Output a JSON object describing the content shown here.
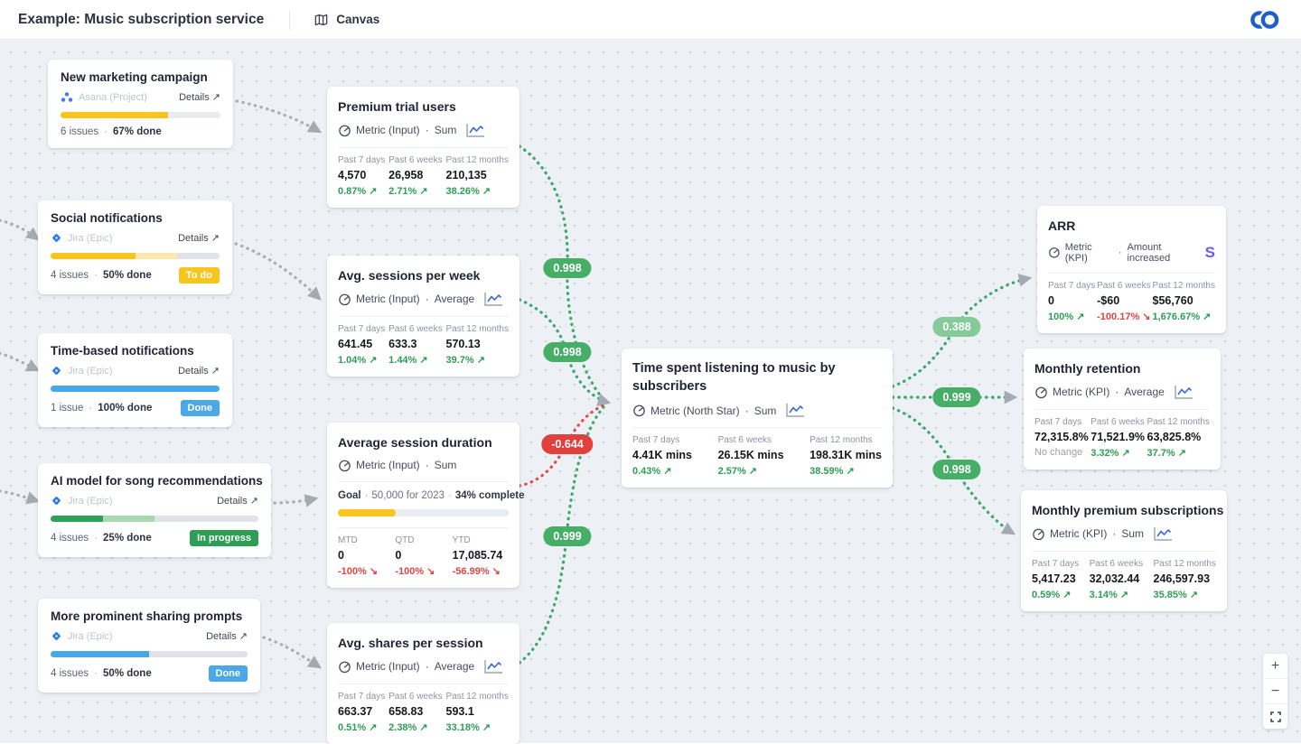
{
  "header": {
    "title": "Example: Music subscription service",
    "view": {
      "icon": "map-icon",
      "label": "Canvas"
    },
    "logo_icon": "doubleloop-logo"
  },
  "ui": {
    "dot": "·",
    "details_arrow": "↗"
  },
  "palette": {
    "edge_positive": "#3aa968",
    "edge_negative": "#e24c4c",
    "edge_work": "#a9aeb6",
    "badge_strong": "#47ae68",
    "badge_weak": "#85cb99",
    "badge_negative": "#e2403c",
    "delta_up": "#2f9e55",
    "delta_down": "#e04444",
    "stripe_blue": "#635bff",
    "jira_blue": "#2b7de9",
    "asana_blue": "#4a7ce0"
  },
  "work_cards": [
    {
      "title": "New marketing campaign",
      "source": "Asana (Project)",
      "source_icon": "asana-icon",
      "details": "Details ↗",
      "issues": "6 issues",
      "done": "67% done",
      "progress": [
        {
          "pct": 67,
          "color": "#f7c51e"
        },
        {
          "pct": 33,
          "color": "#e8ebef"
        }
      ]
    },
    {
      "title": "Social notifications",
      "source": "Jira (Epic)",
      "source_icon": "jira-icon",
      "details": "Details ↗",
      "issues": "4 issues",
      "done": "50% done",
      "status": {
        "label": "To do",
        "bg": "#f6c51f"
      },
      "progress": [
        {
          "pct": 50,
          "color": "#f7c51e"
        },
        {
          "pct": 25,
          "color": "#fbe8ae"
        },
        {
          "pct": 25,
          "color": "#dfe3e8"
        }
      ]
    },
    {
      "title": "Time-based notifications",
      "source": "Jira (Epic)",
      "source_icon": "jira-icon",
      "details": "Details ↗",
      "issues": "1 issue",
      "done": "100% done",
      "status": {
        "label": "Done",
        "bg": "#4aa8e8"
      },
      "progress": [
        {
          "pct": 100,
          "color": "#45a9e9"
        }
      ]
    },
    {
      "title": "AI model for song recommendations",
      "source": "Jira (Epic)",
      "source_icon": "jira-icon",
      "details": "Details ↗",
      "issues": "4 issues",
      "done": "25% done",
      "status": {
        "label": "In progress",
        "bg": "#2f9e55"
      },
      "progress": [
        {
          "pct": 25,
          "color": "#30a257"
        },
        {
          "pct": 25,
          "color": "#a8d9b1"
        },
        {
          "pct": 50,
          "color": "#dfe3e8"
        }
      ]
    },
    {
      "title": "More prominent sharing prompts",
      "source": "Jira (Epic)",
      "source_icon": "jira-icon",
      "details": "Details ↗",
      "issues": "4 issues",
      "done": "50% done",
      "status": {
        "label": "Done",
        "bg": "#4aa8e8"
      },
      "progress": [
        {
          "pct": 50,
          "color": "#45a9e9"
        },
        {
          "pct": 50,
          "color": "#dfe3e8"
        }
      ]
    }
  ],
  "metric_cards": [
    {
      "title": "Premium trial users",
      "type": "Metric (Input)",
      "agg": "Sum",
      "cols": [
        {
          "label": "Past 7 days",
          "value": "4,570",
          "delta": "0.87% ↗"
        },
        {
          "label": "Past 6 weeks",
          "value": "26,958",
          "delta": "2.71% ↗"
        },
        {
          "label": "Past 12 months",
          "value": "210,135",
          "delta": "38.26% ↗"
        }
      ]
    },
    {
      "title": "Avg. sessions per week",
      "type": "Metric (Input)",
      "agg": "Average",
      "cols": [
        {
          "label": "Past 7 days",
          "value": "641.45",
          "delta": "1.04% ↗"
        },
        {
          "label": "Past 6 weeks",
          "value": "633.3",
          "delta": "1.44% ↗"
        },
        {
          "label": "Past 12 months",
          "value": "570.13",
          "delta": "39.7% ↗"
        }
      ]
    },
    {
      "title": "Average session duration",
      "type": "Metric (Input)",
      "agg": "Sum",
      "goal": {
        "label": "Goal",
        "target": "50,000 for 2023",
        "complete": "34% complete",
        "bar": [
          {
            "pct": 34,
            "color": "#f7c51e"
          }
        ]
      },
      "cols": [
        {
          "label": "MTD",
          "value": "0",
          "delta": "-100% ↘"
        },
        {
          "label": "QTD",
          "value": "0",
          "delta": "-100% ↘"
        },
        {
          "label": "YTD",
          "value": "17,085.74",
          "delta": "-56.99% ↘"
        }
      ]
    },
    {
      "title": "Avg. shares per session",
      "type": "Metric (Input)",
      "agg": "Average",
      "cols": [
        {
          "label": "Past 7 days",
          "value": "663.37",
          "delta": "0.51% ↗"
        },
        {
          "label": "Past 6 weeks",
          "value": "658.83",
          "delta": "2.38% ↗"
        },
        {
          "label": "Past 12 months",
          "value": "593.1",
          "delta": "33.18% ↗"
        }
      ]
    },
    {
      "title": "Time spent listening to music by subscribers",
      "type": "Metric (North Star)",
      "agg": "Sum",
      "cols": [
        {
          "label": "Past 7 days",
          "value": "4.41K mins",
          "delta": "0.43% ↗"
        },
        {
          "label": "Past 6 weeks",
          "value": "26.15K mins",
          "delta": "2.57% ↗"
        },
        {
          "label": "Past 12 months",
          "value": "198.31K mins",
          "delta": "38.59% ↗"
        }
      ]
    },
    {
      "title": "ARR",
      "type": "Metric (KPI)",
      "agg": "Amount increased",
      "integration": {
        "icon": "stripe-icon",
        "glyph": "S"
      },
      "cols": [
        {
          "label": "Past 7 days",
          "value": "0",
          "delta": "100% ↗"
        },
        {
          "label": "Past 6 weeks",
          "value": "-$60",
          "delta": "-100.17% ↘"
        },
        {
          "label": "Past 12 months",
          "value": "$56,760",
          "delta": "1,676.67% ↗"
        }
      ]
    },
    {
      "title": "Monthly retention",
      "type": "Metric (KPI)",
      "agg": "Average",
      "cols": [
        {
          "label": "Past 7 days",
          "value": "72,315.8%",
          "delta": "No change"
        },
        {
          "label": "Past 6 weeks",
          "value": "71,521.9%",
          "delta": "3.32% ↗"
        },
        {
          "label": "Past 12 months",
          "value": "63,825.8%",
          "delta": "37.7% ↗"
        }
      ]
    },
    {
      "title": "Monthly premium subscriptions",
      "type": "Metric (KPI)",
      "agg": "Sum",
      "cols": [
        {
          "label": "Past 7 days",
          "value": "5,417.23",
          "delta": "0.59% ↗"
        },
        {
          "label": "Past 6 weeks",
          "value": "32,032.44",
          "delta": "3.14% ↗"
        },
        {
          "label": "Past 12 months",
          "value": "246,597.93",
          "delta": "35.85% ↗"
        }
      ]
    }
  ],
  "correlations": [
    {
      "value": "0.998",
      "tone": "strong"
    },
    {
      "value": "0.998",
      "tone": "strong"
    },
    {
      "value": "-0.644",
      "tone": "negative"
    },
    {
      "value": "0.999",
      "tone": "strong"
    },
    {
      "value": "0.388",
      "tone": "weak"
    },
    {
      "value": "0.999",
      "tone": "strong"
    },
    {
      "value": "0.998",
      "tone": "strong"
    }
  ],
  "zoom_controls": {
    "zoom_in": "+",
    "zoom_out": "−",
    "fit_icon": "fit-screen-icon"
  }
}
